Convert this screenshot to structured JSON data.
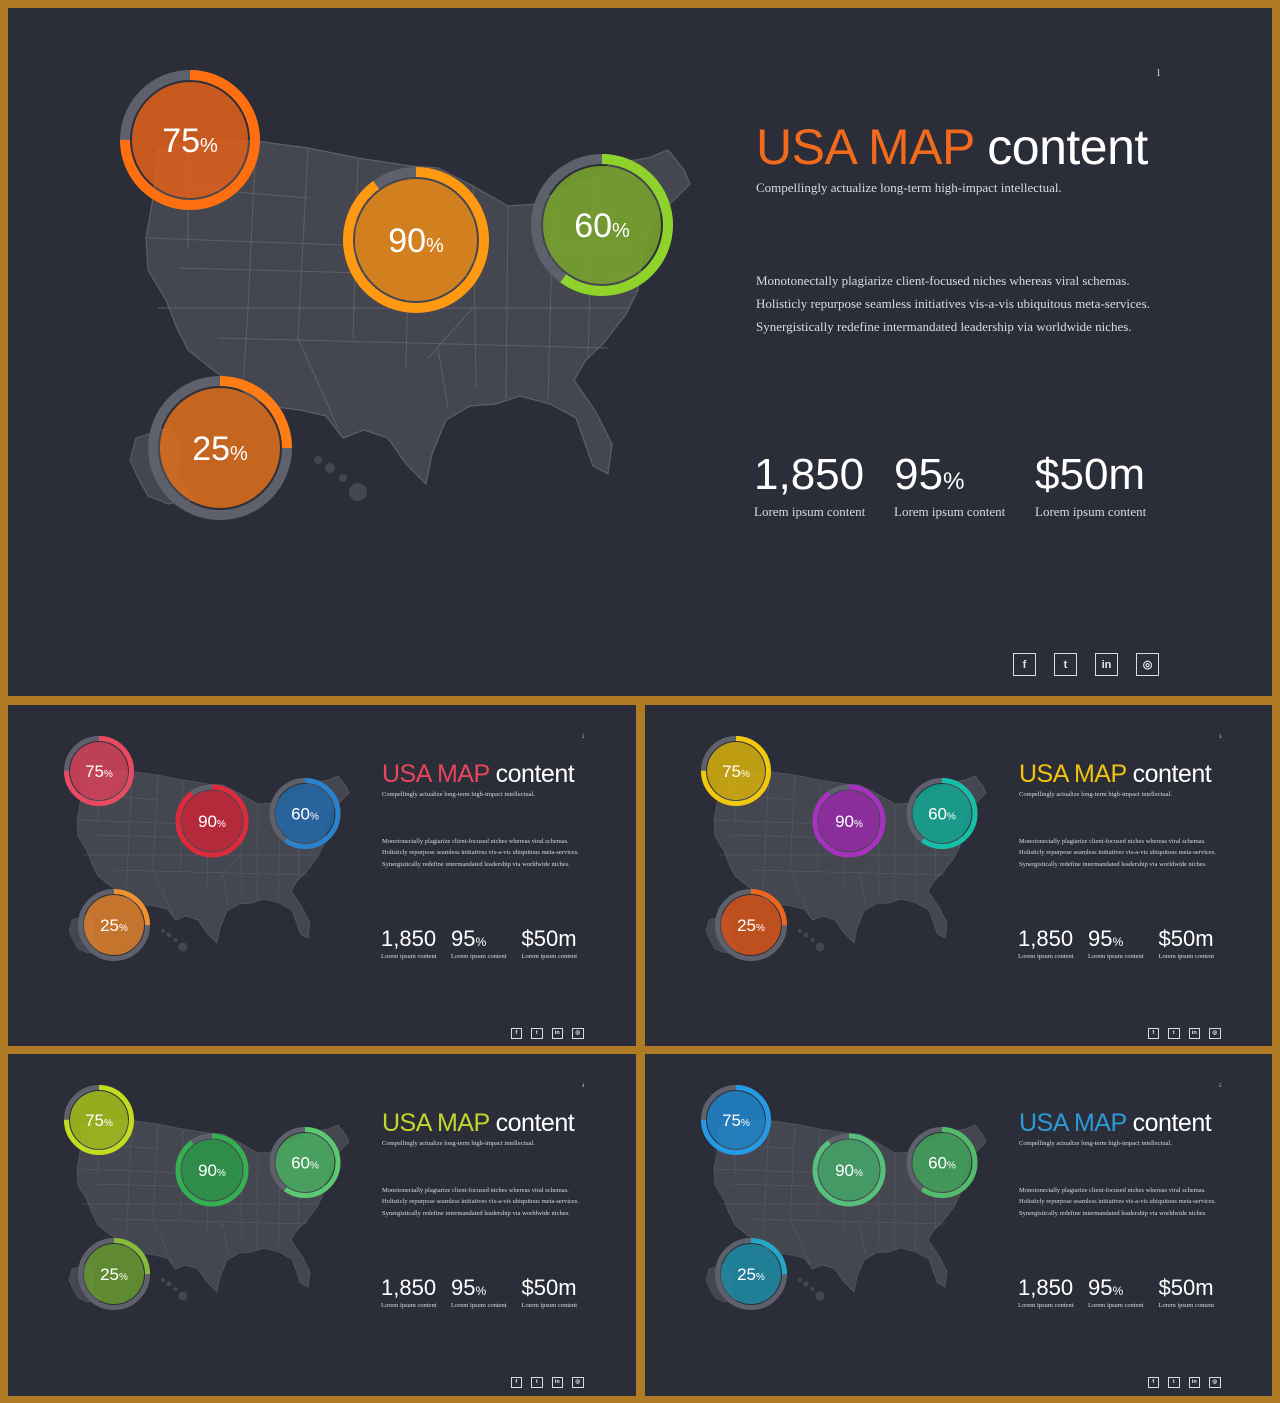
{
  "common": {
    "title_highlight": "USA MAP",
    "title_rest": "content",
    "subtitle": "Compellingly actualize long-term high-impact intellectual.",
    "body": "Monotonectally plagiarize client-focused niches whereas viral schemas. Holisticly repurpose seamless initiatives vis-a-vis ubiquitous meta-services. Synergistically redefine intermandated leadership via worldwide niches.",
    "stats": [
      {
        "value": "1,850",
        "unit": "",
        "label": "Lorem ipsum content"
      },
      {
        "value": "95",
        "unit": "%",
        "label": "Lorem ipsum content"
      },
      {
        "value": "$50m",
        "unit": "",
        "label": "Lorem ipsum content"
      }
    ],
    "percent_sign": "%",
    "social": [
      {
        "glyph": "f",
        "icon": "facebook-icon"
      },
      {
        "glyph": "t",
        "icon": "twitter-icon"
      },
      {
        "glyph": "in",
        "icon": "linkedin-icon"
      },
      {
        "glyph": "◎",
        "icon": "instagram-icon"
      }
    ]
  },
  "slides": [
    {
      "page": "1",
      "accent": "#f26a1b",
      "circles": [
        {
          "label": "75",
          "fraction": 0.75,
          "fill": "#e4601a",
          "ring": "#ff6f10"
        },
        {
          "label": "90",
          "fraction": 0.9,
          "fill": "#ea8a16",
          "ring": "#ff9912"
        },
        {
          "label": "60",
          "fraction": 0.6,
          "fill": "#7aa82c",
          "ring": "#8fd22a"
        },
        {
          "label": "25",
          "fraction": 0.25,
          "fill": "#e0701c",
          "ring": "#ff7d12"
        }
      ]
    },
    {
      "page": "2",
      "accent": "#e8455a",
      "circles": [
        {
          "label": "75",
          "fraction": 0.75,
          "fill": "#d8435a",
          "ring": "#e94a62"
        },
        {
          "label": "90",
          "fraction": 0.9,
          "fill": "#c82637",
          "ring": "#e02a3c"
        },
        {
          "label": "60",
          "fraction": 0.6,
          "fill": "#236aa8",
          "ring": "#2b82cc"
        },
        {
          "label": "25",
          "fraction": 0.25,
          "fill": "#e0802c",
          "ring": "#f09030"
        }
      ]
    },
    {
      "page": "3",
      "accent": "#f2c20e",
      "circles": [
        {
          "label": "75",
          "fraction": 0.75,
          "fill": "#d8b00c",
          "ring": "#f2c80c"
        },
        {
          "label": "90",
          "fraction": 0.9,
          "fill": "#962aa8",
          "ring": "#a830c0"
        },
        {
          "label": "60",
          "fraction": 0.6,
          "fill": "#13a894",
          "ring": "#15c0aa"
        },
        {
          "label": "25",
          "fraction": 0.25,
          "fill": "#d8561c",
          "ring": "#f0641e"
        }
      ]
    },
    {
      "page": "4",
      "accent": "#c4d62a",
      "circles": [
        {
          "label": "75",
          "fraction": 0.75,
          "fill": "#a8c21a",
          "ring": "#c4dc1e"
        },
        {
          "label": "90",
          "fraction": 0.9,
          "fill": "#2a9a48",
          "ring": "#33b052"
        },
        {
          "label": "60",
          "fraction": 0.6,
          "fill": "#4ab060",
          "ring": "#5cc870"
        },
        {
          "label": "25",
          "fraction": 0.25,
          "fill": "#6a9a30",
          "ring": "#86bc3a"
        }
      ]
    },
    {
      "page": "5",
      "accent": "#2d9ad8",
      "circles": [
        {
          "label": "75",
          "fraction": 0.75,
          "fill": "#1f86cc",
          "ring": "#229ae6"
        },
        {
          "label": "90",
          "fraction": 0.9,
          "fill": "#45a868",
          "ring": "#55c07a"
        },
        {
          "label": "60",
          "fraction": 0.6,
          "fill": "#42a45a",
          "ring": "#52bc6a"
        },
        {
          "label": "25",
          "fraction": 0.25,
          "fill": "#1f8ca8",
          "ring": "#24a6c8"
        }
      ]
    }
  ]
}
